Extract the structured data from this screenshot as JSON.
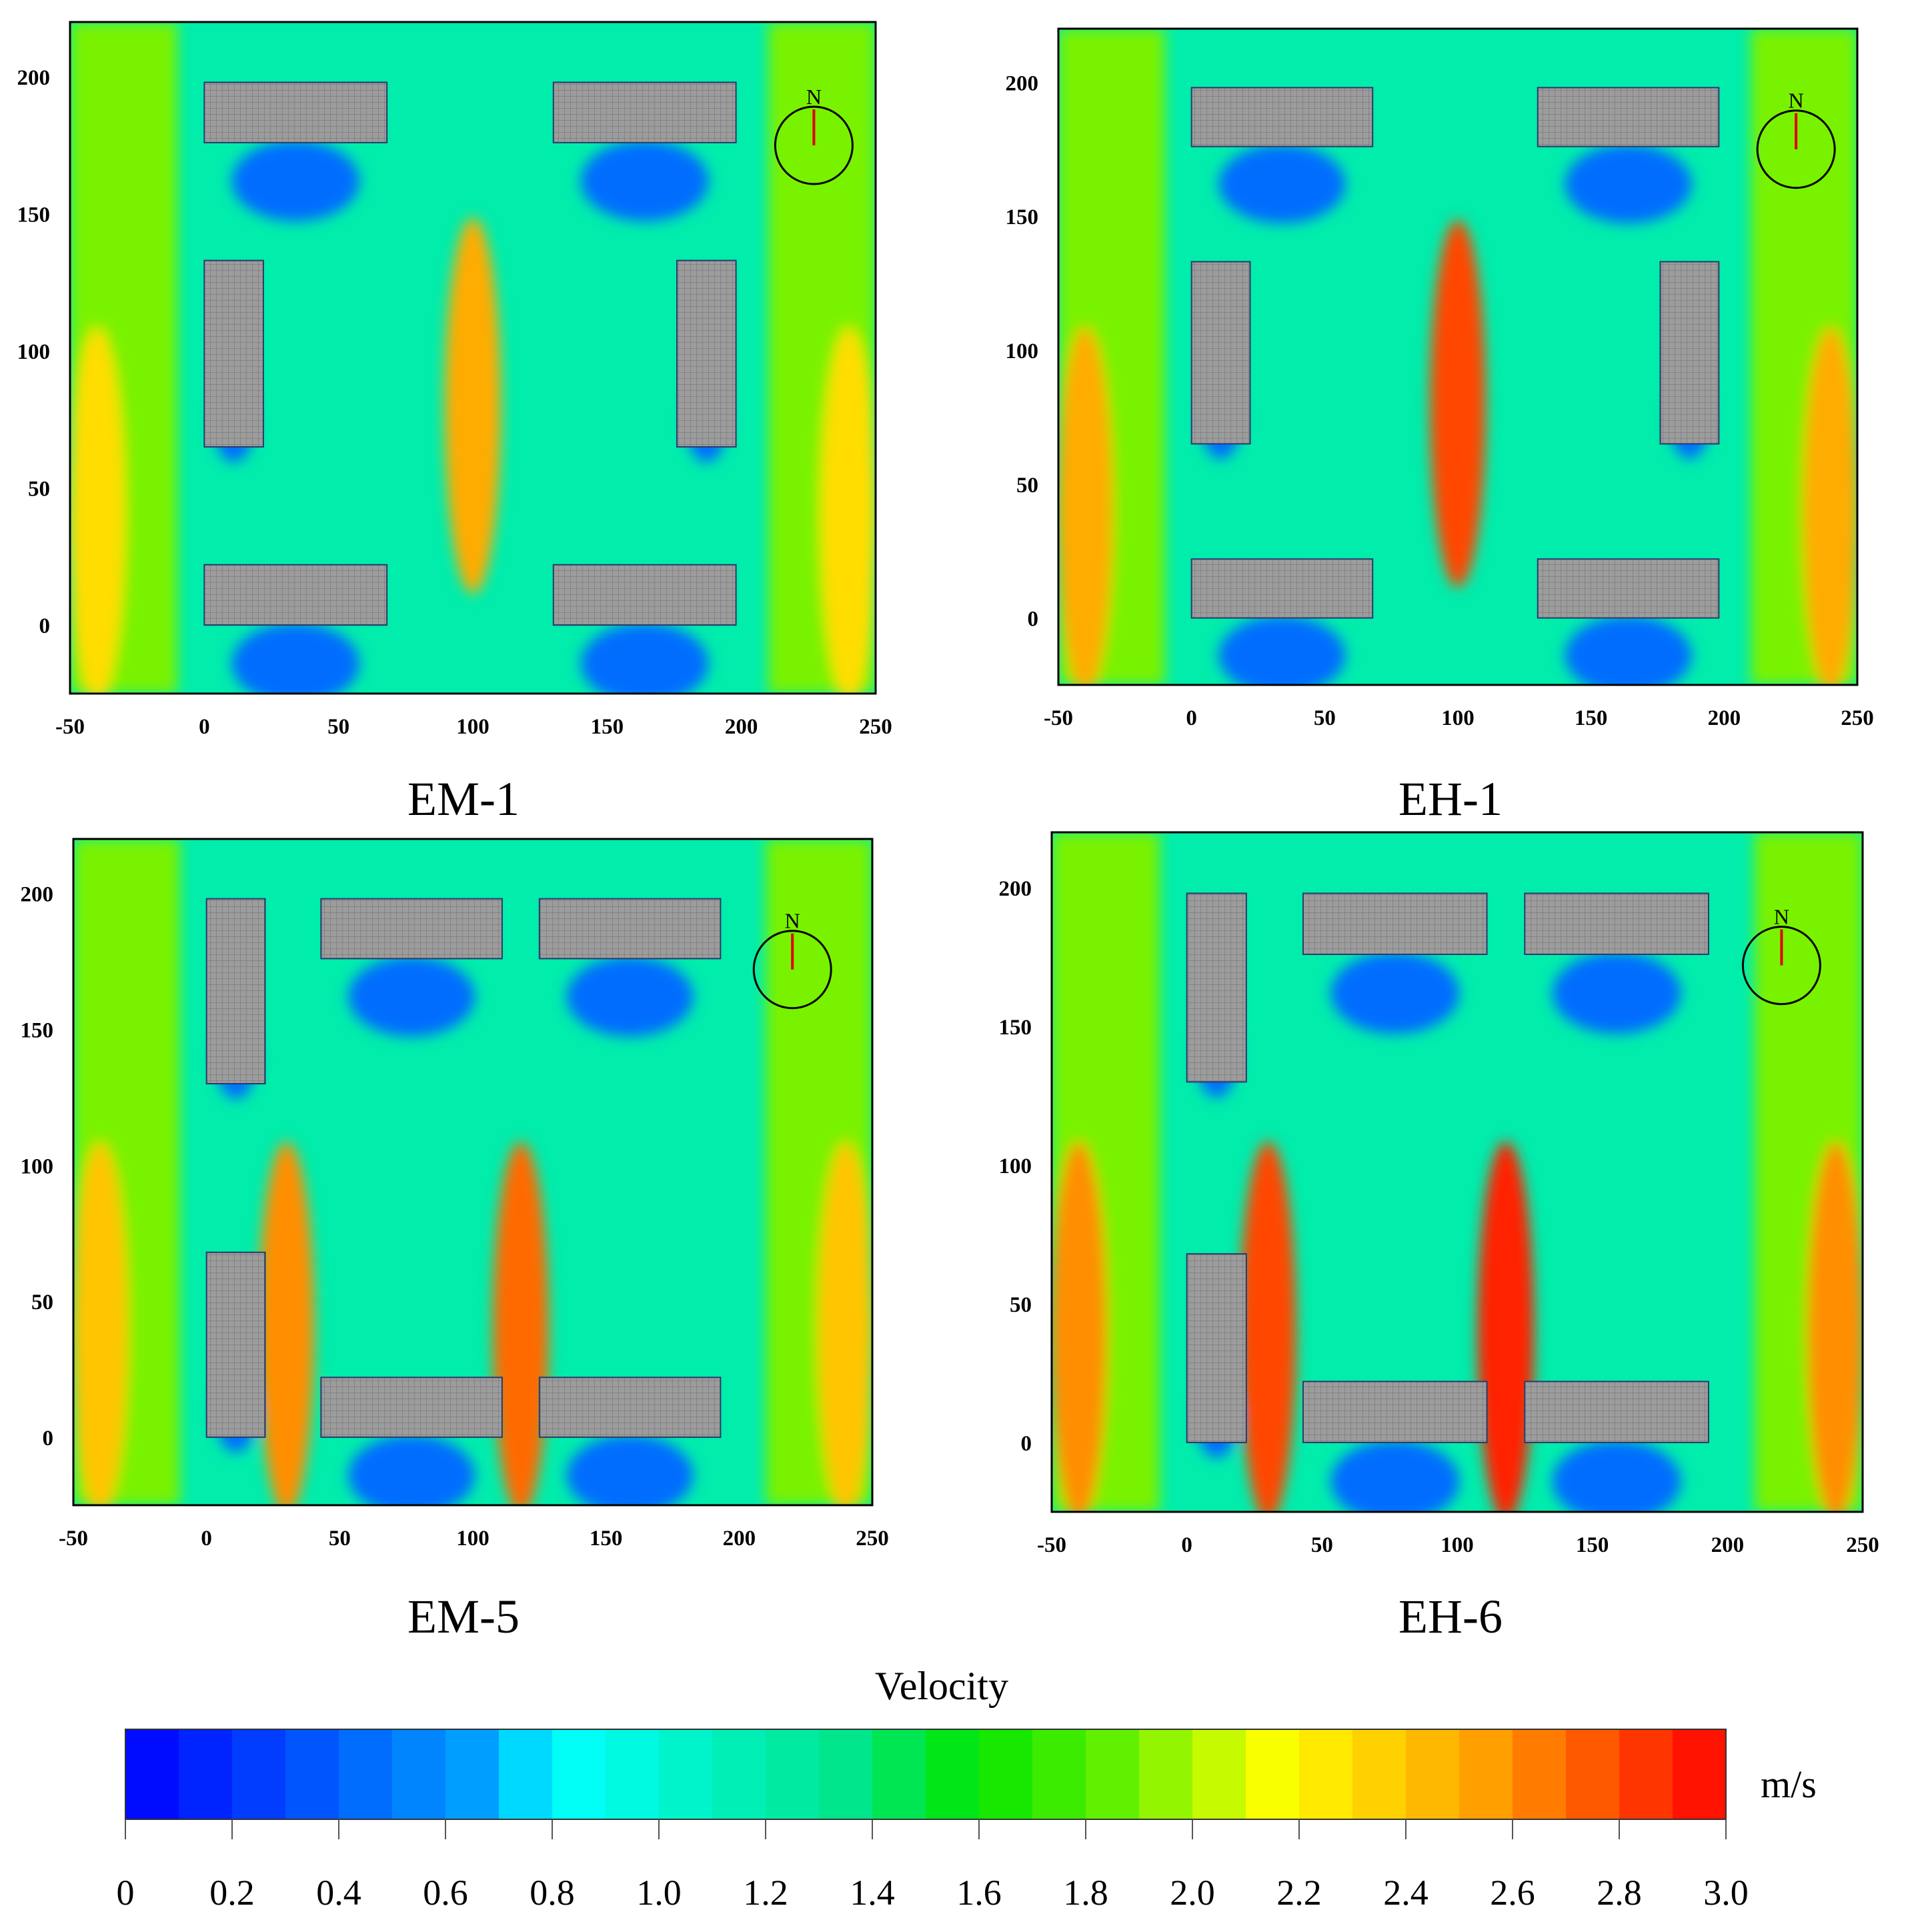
{
  "chart_data": {
    "type": "heatmap",
    "colorbar": {
      "title": "Velocity",
      "unit": "m/s",
      "range": [
        0,
        3.0
      ],
      "ticks": [
        "0",
        "0.2",
        "0.4",
        "0.6",
        "0.8",
        "1.0",
        "1.2",
        "1.4",
        "1.6",
        "1.8",
        "2.0",
        "2.2",
        "2.4",
        "2.6",
        "2.8",
        "3.0"
      ],
      "levels": 30
    },
    "panels": [
      {
        "title": "EM-1",
        "xlim": [
          -50,
          250
        ],
        "ylim": [
          -25,
          220
        ],
        "xticks": [
          "-50",
          "0",
          "50",
          "100",
          "150",
          "200",
          "250"
        ],
        "yticks": [
          "0",
          "50",
          "100",
          "150",
          "200"
        ],
        "buildings": [
          [
            0,
            0,
            68,
            22
          ],
          [
            130,
            0,
            198,
            22
          ],
          [
            0,
            176,
            68,
            198
          ],
          [
            130,
            176,
            198,
            198
          ],
          [
            0,
            65,
            22,
            133
          ],
          [
            176,
            65,
            198,
            133
          ]
        ],
        "compass": {
          "label": "N",
          "x": 227,
          "y": 175
        },
        "jets": [
          {
            "x": 100,
            "y": 80,
            "peak": 2.5
          },
          {
            "x": -40,
            "y": 40,
            "peak": 2.3
          },
          {
            "x": 240,
            "y": 40,
            "peak": 2.3
          }
        ]
      },
      {
        "title": "EH-1",
        "xlim": [
          -50,
          250
        ],
        "ylim": [
          -25,
          220
        ],
        "xticks": [
          "-50",
          "0",
          "50",
          "100",
          "150",
          "200",
          "250"
        ],
        "yticks": [
          "0",
          "50",
          "100",
          "150",
          "200"
        ],
        "buildings": [
          [
            0,
            0,
            68,
            22
          ],
          [
            130,
            0,
            198,
            22
          ],
          [
            0,
            176,
            68,
            198
          ],
          [
            130,
            176,
            198,
            198
          ],
          [
            0,
            65,
            22,
            133
          ],
          [
            176,
            65,
            198,
            133
          ]
        ],
        "compass": {
          "label": "N",
          "x": 227,
          "y": 175
        },
        "jets": [
          {
            "x": 100,
            "y": 80,
            "peak": 2.8
          },
          {
            "x": -40,
            "y": 40,
            "peak": 2.5
          },
          {
            "x": 240,
            "y": 40,
            "peak": 2.5
          }
        ]
      },
      {
        "title": "EM-5",
        "xlim": [
          -50,
          250
        ],
        "ylim": [
          -25,
          220
        ],
        "xticks": [
          "-50",
          "0",
          "50",
          "100",
          "150",
          "200",
          "250"
        ],
        "yticks": [
          "0",
          "50",
          "100",
          "150",
          "200"
        ],
        "buildings": [
          [
            0,
            0,
            22,
            68
          ],
          [
            0,
            130,
            22,
            198
          ],
          [
            43,
            0,
            111,
            22
          ],
          [
            125,
            0,
            193,
            22
          ],
          [
            43,
            176,
            111,
            198
          ],
          [
            125,
            176,
            193,
            198
          ]
        ],
        "compass": {
          "label": "N",
          "x": 220,
          "y": 172
        },
        "jets": [
          {
            "x": 118,
            "y": 40,
            "peak": 2.7
          },
          {
            "x": 30,
            "y": 40,
            "peak": 2.6
          },
          {
            "x": -40,
            "y": 40,
            "peak": 2.4
          },
          {
            "x": 240,
            "y": 40,
            "peak": 2.4
          }
        ]
      },
      {
        "title": "EH-6",
        "xlim": [
          -50,
          250
        ],
        "ylim": [
          -25,
          220
        ],
        "xticks": [
          "-50",
          "0",
          "50",
          "100",
          "150",
          "200",
          "250"
        ],
        "yticks": [
          "0",
          "50",
          "100",
          "150",
          "200"
        ],
        "buildings": [
          [
            0,
            0,
            22,
            68
          ],
          [
            0,
            130,
            22,
            198
          ],
          [
            43,
            0,
            111,
            22
          ],
          [
            125,
            0,
            193,
            22
          ],
          [
            43,
            176,
            111,
            198
          ],
          [
            125,
            176,
            193,
            198
          ]
        ],
        "compass": {
          "label": "N",
          "x": 220,
          "y": 172
        },
        "jets": [
          {
            "x": 118,
            "y": 40,
            "peak": 2.9
          },
          {
            "x": 30,
            "y": 40,
            "peak": 2.8
          },
          {
            "x": -40,
            "y": 40,
            "peak": 2.6
          },
          {
            "x": 240,
            "y": 40,
            "peak": 2.6
          }
        ]
      }
    ]
  }
}
